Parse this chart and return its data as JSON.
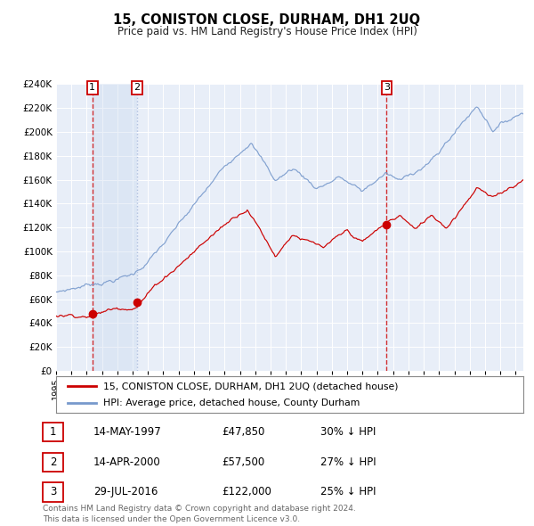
{
  "title": "15, CONISTON CLOSE, DURHAM, DH1 2UQ",
  "subtitle": "Price paid vs. HM Land Registry's House Price Index (HPI)",
  "ylim": [
    0,
    240000
  ],
  "yticks": [
    0,
    20000,
    40000,
    60000,
    80000,
    100000,
    120000,
    140000,
    160000,
    180000,
    200000,
    220000,
    240000
  ],
  "background_color": "#ffffff",
  "plot_bg_color": "#e8eef8",
  "grid_color": "#ffffff",
  "sale_years": [
    1997.37,
    2000.29,
    2016.58
  ],
  "sale_prices": [
    47850,
    57500,
    122000
  ],
  "sale_labels": [
    "1",
    "2",
    "3"
  ],
  "sale_date_strs": [
    "14-MAY-1997",
    "14-APR-2000",
    "29-JUL-2016"
  ],
  "sale_price_strs": [
    "£47,850",
    "£57,500",
    "£122,000"
  ],
  "sale_hpi_pct": [
    "30% ↓ HPI",
    "27% ↓ HPI",
    "25% ↓ HPI"
  ],
  "legend_line1": "15, CONISTON CLOSE, DURHAM, DH1 2UQ (detached house)",
  "legend_line2": "HPI: Average price, detached house, County Durham",
  "footer": "Contains HM Land Registry data © Crown copyright and database right 2024.\nThis data is licensed under the Open Government Licence v3.0.",
  "red_color": "#cc0000",
  "blue_color": "#7799cc",
  "shade_color": "#c8d8ee",
  "xmin": 1995,
  "xmax": 2025.5
}
